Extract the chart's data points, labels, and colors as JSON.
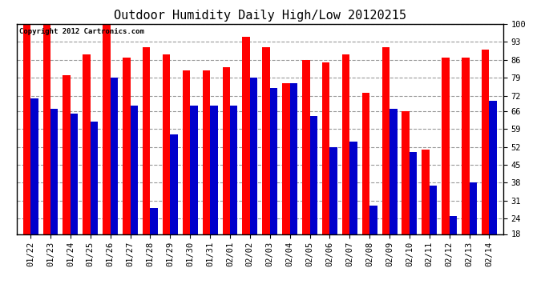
{
  "title": "Outdoor Humidity Daily High/Low 20120215",
  "copyright_text": "Copyright 2012 Cartronics.com",
  "dates": [
    "01/22",
    "01/23",
    "01/24",
    "01/25",
    "01/26",
    "01/27",
    "01/28",
    "01/29",
    "01/30",
    "01/31",
    "02/01",
    "02/02",
    "02/03",
    "02/04",
    "02/05",
    "02/06",
    "02/07",
    "02/08",
    "02/09",
    "02/10",
    "02/11",
    "02/12",
    "02/13",
    "02/14"
  ],
  "highs": [
    100,
    100,
    80,
    88,
    100,
    87,
    91,
    88,
    82,
    82,
    83,
    95,
    91,
    77,
    86,
    85,
    88,
    73,
    91,
    66,
    51,
    87,
    87,
    90
  ],
  "lows": [
    71,
    67,
    65,
    62,
    79,
    68,
    28,
    57,
    68,
    68,
    68,
    79,
    75,
    77,
    64,
    52,
    54,
    29,
    67,
    50,
    37,
    25,
    38,
    70
  ],
  "high_color": "#ff0000",
  "low_color": "#0000cc",
  "background_color": "#ffffff",
  "grid_color": "#999999",
  "ylim_min": 18,
  "ylim_max": 100,
  "yticks": [
    18,
    24,
    31,
    38,
    45,
    52,
    59,
    66,
    72,
    79,
    86,
    93,
    100
  ],
  "bar_width": 0.38,
  "title_fontsize": 11,
  "tick_fontsize": 7.5,
  "copyright_fontsize": 6.5
}
